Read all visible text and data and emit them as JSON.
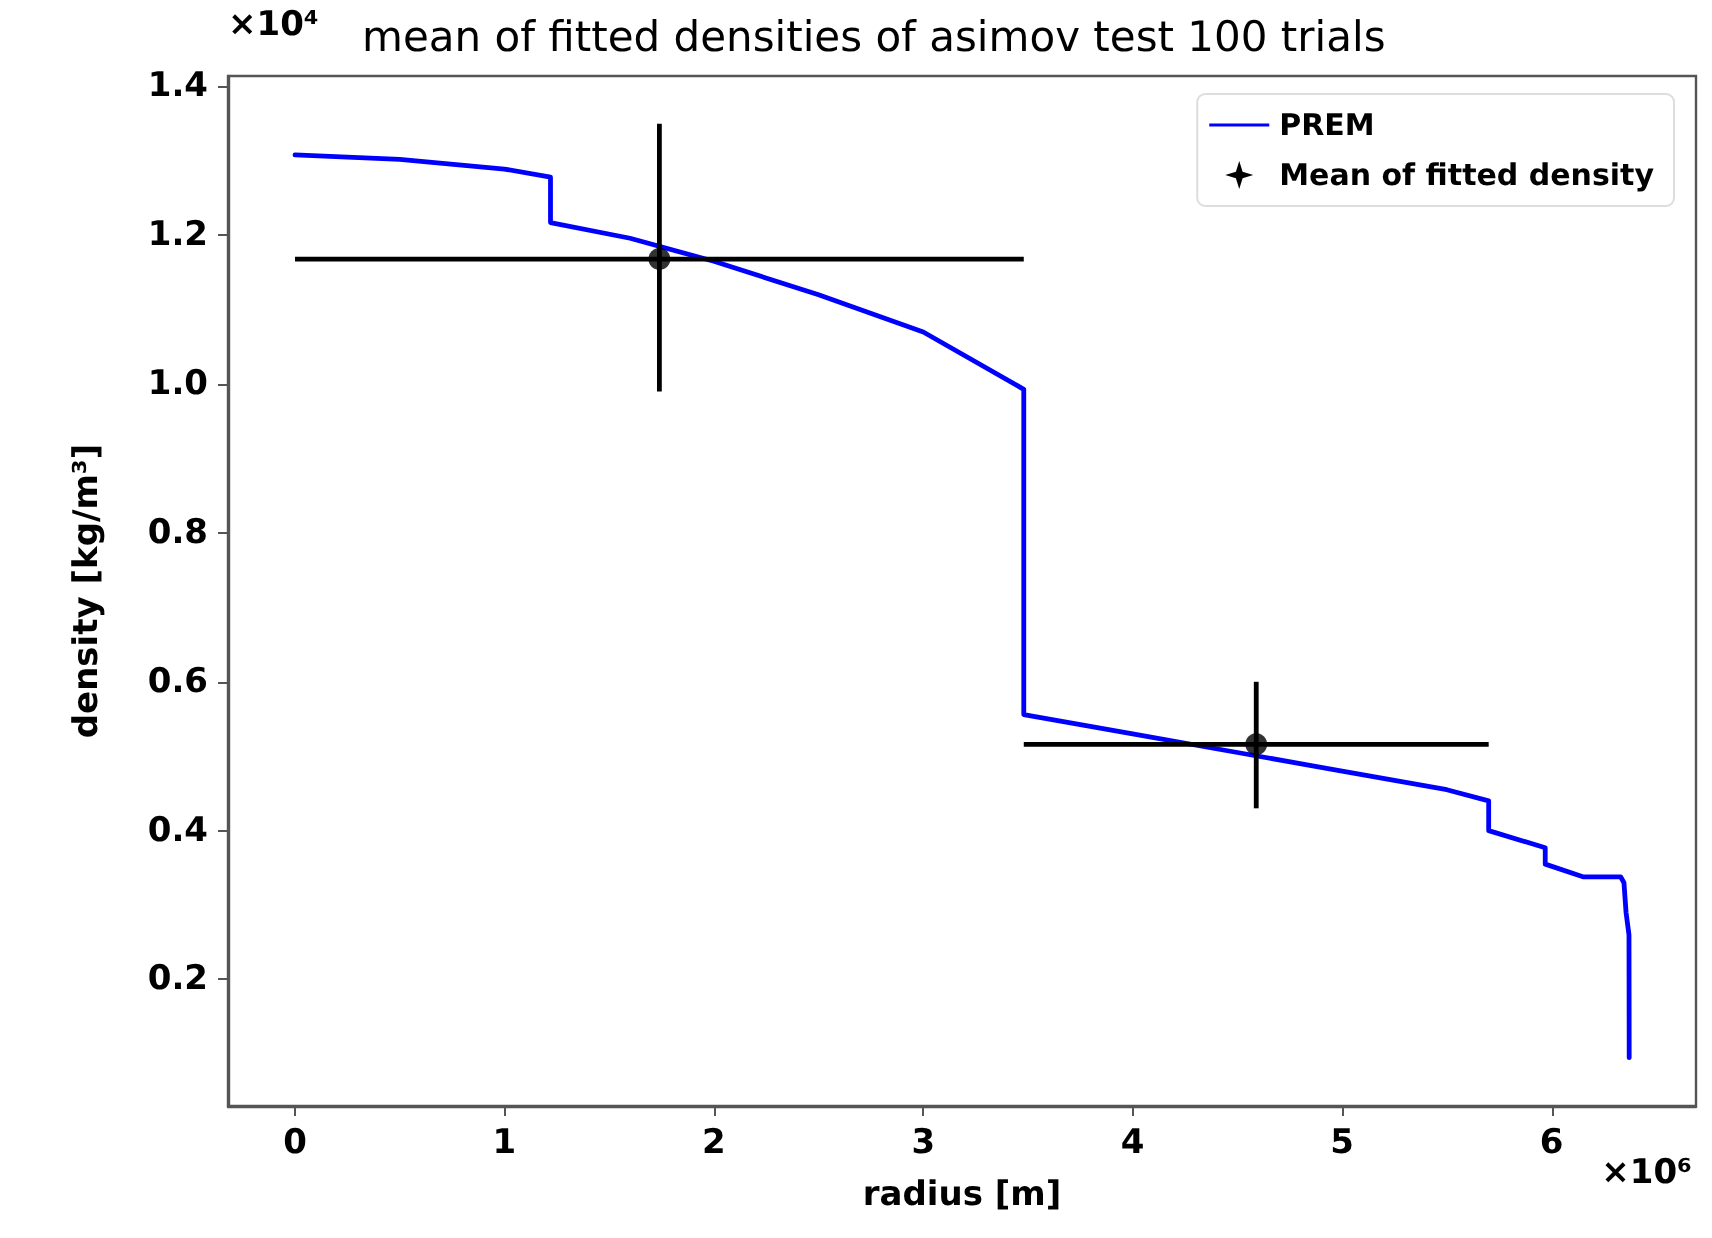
{
  "chart_data": {
    "type": "line",
    "title": "mean of fitted densities of asimov test 100 trials",
    "xlabel": "radius [m]",
    "ylabel": "density [kg/m³]",
    "annotations": [
      "×10⁴",
      "×10⁶"
    ],
    "xlim": [
      -0.32,
      6.69
    ],
    "xticks": [
      0,
      1,
      2,
      3,
      4,
      5,
      6
    ],
    "ylim": [
      0.03,
      1.414
    ],
    "yticks": [
      0.2,
      0.4,
      0.6,
      0.8,
      {
        "value": 1,
        "label": "1.0"
      },
      1.2,
      1.4
    ],
    "legend": "top right",
    "grid": false,
    "series": [
      {
        "name": "PREM",
        "type": "line",
        "color": "#0000ff",
        "marker": "none",
        "line_style": "solid",
        "x": [
          0,
          0.5,
          1.0,
          1.22,
          1.22,
          1.6,
          2.0,
          2.5,
          3.0,
          3.48,
          3.48,
          4.0,
          4.5,
          5.0,
          5.5,
          5.7,
          5.7,
          5.97,
          5.97,
          6.15,
          6.15,
          6.33,
          6.346,
          6.356,
          6.37,
          6.371
        ],
        "values": [
          1.308,
          1.302,
          1.289,
          1.278,
          1.217,
          1.196,
          1.165,
          1.12,
          1.07,
          0.993,
          0.556,
          0.53,
          0.505,
          0.48,
          0.455,
          0.44,
          0.4,
          0.377,
          0.355,
          0.338,
          0.338,
          0.338,
          0.33,
          0.29,
          0.26,
          0.095
        ]
      },
      {
        "name": "Mean of fitted density",
        "type": "scatter",
        "color": "#000000",
        "marker": "circle",
        "x": [
          1.74,
          4.59
        ],
        "values": [
          1.168,
          0.516
        ],
        "errors": [
          [
            0.99,
            1.35
          ],
          [
            0.43,
            0.6
          ]
        ],
        "xerrors": [
          [
            0,
            3.48
          ],
          [
            3.48,
            5.7
          ]
        ]
      }
    ]
  }
}
